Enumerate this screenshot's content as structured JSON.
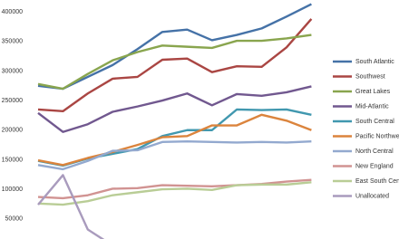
{
  "chart_data": {
    "type": "line",
    "ylim": [
      16000,
      420000
    ],
    "yticks": [
      50000,
      100000,
      150000,
      200000,
      250000,
      300000,
      350000,
      400000
    ],
    "series": [
      {
        "name": "South Atlantic",
        "color": "#4572a7",
        "values": [
          275000,
          270000,
          290000,
          310000,
          337000,
          366000,
          370000,
          352000,
          361000,
          372000,
          392000,
          413000
        ]
      },
      {
        "name": "Southwest",
        "color": "#aa4643",
        "values": [
          235000,
          232000,
          262000,
          287000,
          290000,
          319000,
          321000,
          298000,
          308000,
          307000,
          340000,
          388000
        ]
      },
      {
        "name": "Great Lakes",
        "color": "#89a54e",
        "values": [
          278000,
          270000,
          295000,
          318000,
          332000,
          343000,
          341000,
          339000,
          351000,
          351000,
          355000,
          361000
        ]
      },
      {
        "name": "Mid-Atlantic",
        "color": "#71588f",
        "values": [
          229000,
          197000,
          210000,
          231000,
          240000,
          250000,
          262000,
          242000,
          261000,
          258000,
          264000,
          274000
        ]
      },
      {
        "name": "South Central",
        "color": "#4198af",
        "values": [
          148000,
          140000,
          152000,
          160000,
          168000,
          190000,
          200000,
          200000,
          235000,
          234000,
          235000,
          226000
        ]
      },
      {
        "name": "Pacific Northwest",
        "color": "#db843d",
        "values": [
          149000,
          141000,
          153000,
          163000,
          175000,
          188000,
          190000,
          208000,
          208000,
          226000,
          216000,
          200000
        ]
      },
      {
        "name": "North Central",
        "color": "#93a9cf",
        "values": [
          141000,
          134000,
          148000,
          165000,
          166000,
          180000,
          181000,
          180000,
          179000,
          180000,
          179000,
          181000
        ]
      },
      {
        "name": "New England",
        "color": "#d19392",
        "values": [
          87000,
          85000,
          90000,
          101000,
          102000,
          107000,
          106000,
          105000,
          107000,
          109000,
          113000,
          116000
        ]
      },
      {
        "name": "East South Central",
        "color": "#b9cd96",
        "values": [
          76000,
          74000,
          80000,
          90000,
          95000,
          100000,
          101000,
          99000,
          107000,
          108000,
          108000,
          112000
        ]
      },
      {
        "name": "Unallocated",
        "color": "#a99bbd",
        "values": [
          74000,
          124000,
          32000,
          5000,
          null,
          null,
          null,
          null,
          null,
          null,
          null,
          null
        ]
      }
    ]
  }
}
